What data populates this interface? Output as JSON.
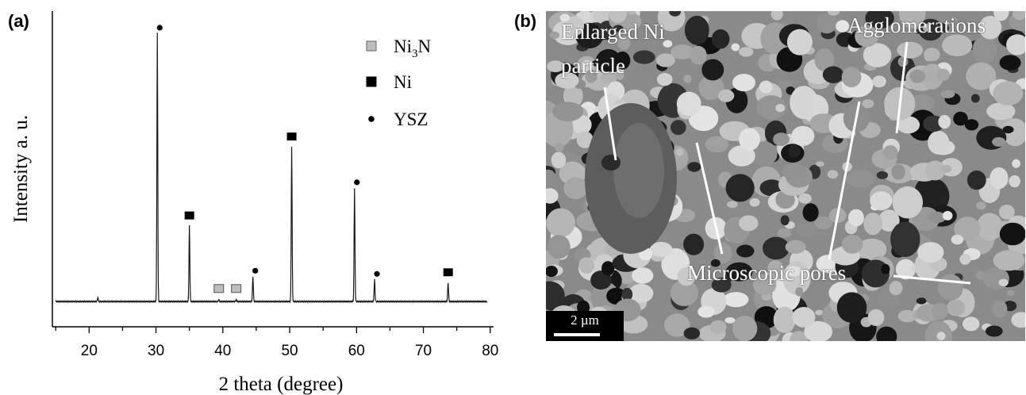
{
  "panels": {
    "left_label": "(a)",
    "right_label": "(b)"
  },
  "chart_data": {
    "type": "line",
    "title": "",
    "xlabel": "2 theta (degree)",
    "ylabel": "Intensity a. u.",
    "xlim": [
      14.5,
      80.5
    ],
    "ylim": [
      0,
      100
    ],
    "xticks": [
      20,
      30,
      40,
      50,
      60,
      70,
      80
    ],
    "legend": {
      "placement": "top-right",
      "entries": [
        {
          "label": "Ni",
          "sub": "3",
          "label_tail": "N",
          "marker": "square",
          "color": "#bdbdbd"
        },
        {
          "label": "Ni",
          "sub": "",
          "label_tail": "",
          "marker": "square",
          "color": "#000000"
        },
        {
          "label": "YSZ",
          "sub": "",
          "label_tail": "",
          "marker": "circle",
          "color": "#000000"
        }
      ]
    },
    "baseline": 8,
    "series": [
      {
        "peaks": [
          {
            "x": 21.3,
            "y": 9.2,
            "phase": null
          },
          {
            "x": 30.2,
            "y": 93,
            "phase": "YSZ"
          },
          {
            "x": 35.0,
            "y": 32,
            "phase": "Ni"
          },
          {
            "x": 39.4,
            "y": 8.6,
            "phase": "Ni3N"
          },
          {
            "x": 42.0,
            "y": 8.6,
            "phase": "Ni3N"
          },
          {
            "x": 44.5,
            "y": 16,
            "phase": "YSZ"
          },
          {
            "x": 50.3,
            "y": 57,
            "phase": "Ni"
          },
          {
            "x": 59.7,
            "y": 44,
            "phase": "YSZ"
          },
          {
            "x": 62.7,
            "y": 15,
            "phase": "YSZ"
          },
          {
            "x": 73.7,
            "y": 14,
            "phase": "Ni"
          }
        ]
      }
    ]
  },
  "image": {
    "annotations": {
      "enlarged": "Enlarged Ni",
      "particle": "particle",
      "agglomerations": "Agglomerations",
      "pores": "Microscopic pores"
    },
    "scale_bar": "2 µm"
  }
}
